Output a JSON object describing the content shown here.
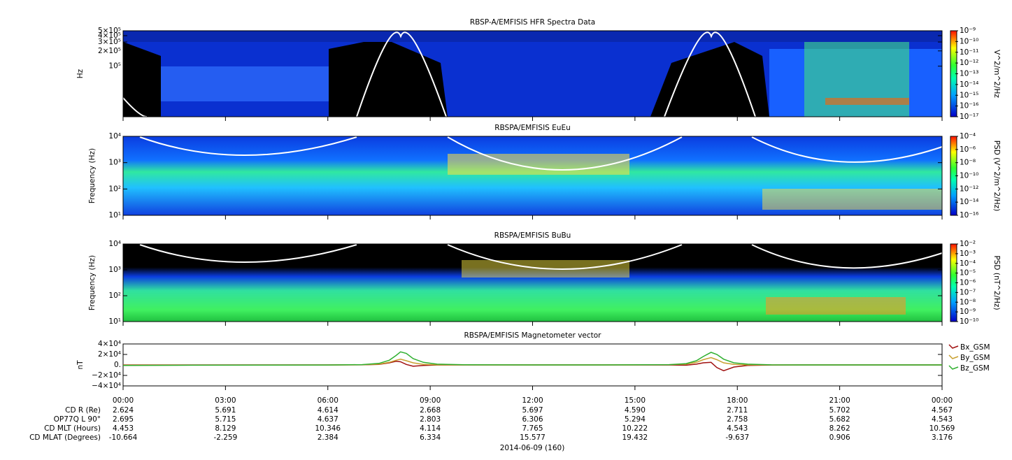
{
  "chart_data": [
    {
      "type": "spectrogram",
      "title": "RBSP-A/EMFISIS  HFR Spectra Data",
      "ylabel": "Hz",
      "yscale": "log",
      "ylim": [
        10000,
        500000
      ],
      "yticks": [
        {
          "value": 500000,
          "label": "5×10⁵"
        },
        {
          "value": 400000,
          "label": "4×10⁵"
        },
        {
          "value": 300000,
          "label": "3×10⁵"
        },
        {
          "value": 200000,
          "label": "2×10⁵"
        },
        {
          "value": 100000,
          "label": "10⁵"
        }
      ],
      "zlabel": "V^2/m^2/Hz",
      "zlim": [
        1e-17,
        1e-09
      ],
      "zticks": [
        {
          "value": 1e-09,
          "label": "10⁻⁹"
        },
        {
          "value": 1e-10,
          "label": "10⁻¹⁰"
        },
        {
          "value": 1e-11,
          "label": "10⁻¹¹"
        },
        {
          "value": 1e-12,
          "label": "10⁻¹²"
        },
        {
          "value": 1e-13,
          "label": "10⁻¹³"
        },
        {
          "value": 1e-14,
          "label": "10⁻¹⁴"
        },
        {
          "value": 1e-15,
          "label": "10⁻¹⁵"
        },
        {
          "value": 1e-16,
          "label": "10⁻¹⁶"
        },
        {
          "value": 1e-17,
          "label": "10⁻¹⁷"
        }
      ]
    },
    {
      "type": "spectrogram",
      "title": "RBSPA/EMFISIS  EuEu",
      "ylabel": "Frequency (Hz)",
      "yscale": "log",
      "ylim": [
        10,
        10000
      ],
      "yticks": [
        {
          "value": 10,
          "label": "10¹"
        },
        {
          "value": 100,
          "label": "10²"
        },
        {
          "value": 1000,
          "label": "10³"
        },
        {
          "value": 10000,
          "label": "10⁴"
        }
      ],
      "zlabel": "PSD (V^2/m^2/Hz)",
      "zlim": [
        1e-16,
        0.0001
      ],
      "zticks": [
        {
          "value": 0.0001,
          "label": "10⁻⁴"
        },
        {
          "value": 1e-06,
          "label": "10⁻⁶"
        },
        {
          "value": 1e-08,
          "label": "10⁻⁸"
        },
        {
          "value": 1e-10,
          "label": "10⁻¹⁰"
        },
        {
          "value": 1e-12,
          "label": "10⁻¹²"
        },
        {
          "value": 1e-14,
          "label": "10⁻¹⁴"
        },
        {
          "value": 1e-16,
          "label": "10⁻¹⁶"
        }
      ]
    },
    {
      "type": "spectrogram",
      "title": "RBSPA/EMFISIS  BuBu",
      "ylabel": "Frequency (Hz)",
      "yscale": "log",
      "ylim": [
        10,
        10000
      ],
      "yticks": [
        {
          "value": 10,
          "label": "10¹"
        },
        {
          "value": 100,
          "label": "10²"
        },
        {
          "value": 1000,
          "label": "10³"
        },
        {
          "value": 10000,
          "label": "10⁴"
        }
      ],
      "zlabel": "PSD (nT^2/Hz)",
      "zlim": [
        1e-10,
        0.01
      ],
      "zticks": [
        {
          "value": 0.01,
          "label": "10⁻²"
        },
        {
          "value": 0.001,
          "label": "10⁻³"
        },
        {
          "value": 0.0001,
          "label": "10⁻⁴"
        },
        {
          "value": 1e-05,
          "label": "10⁻⁵"
        },
        {
          "value": 1e-06,
          "label": "10⁻⁶"
        },
        {
          "value": 1e-07,
          "label": "10⁻⁷"
        },
        {
          "value": 1e-08,
          "label": "10⁻⁸"
        },
        {
          "value": 1e-09,
          "label": "10⁻⁹"
        },
        {
          "value": 1e-10,
          "label": "10⁻¹⁰"
        }
      ]
    },
    {
      "type": "line",
      "title": "RBSPA/EMFISIS  Magnetometer vector",
      "ylabel": "nT",
      "xlim": [
        0,
        24
      ],
      "xticks": [
        {
          "value": 0,
          "label": "00:00"
        },
        {
          "value": 3,
          "label": "03:00"
        },
        {
          "value": 6,
          "label": "06:00"
        },
        {
          "value": 9,
          "label": "09:00"
        },
        {
          "value": 12,
          "label": "12:00"
        },
        {
          "value": 15,
          "label": "15:00"
        },
        {
          "value": 18,
          "label": "18:00"
        },
        {
          "value": 21,
          "label": "21:00"
        },
        {
          "value": 24,
          "label": "00:00"
        }
      ],
      "ylim": [
        -40000,
        40000
      ],
      "yticks": [
        {
          "value": 40000,
          "label": "4×10⁴"
        },
        {
          "value": 20000,
          "label": "2×10⁴"
        },
        {
          "value": 0,
          "label": "0."
        },
        {
          "value": -20000,
          "label": "−2×10⁴"
        },
        {
          "value": -40000,
          "label": "−4×10⁴"
        }
      ],
      "x": [
        0,
        2,
        4,
        6,
        7,
        7.5,
        7.8,
        8.0,
        8.13,
        8.3,
        8.5,
        8.8,
        9.2,
        10,
        12,
        14,
        16,
        16.5,
        16.8,
        17.0,
        17.23,
        17.4,
        17.6,
        17.9,
        18.3,
        19,
        21,
        24
      ],
      "series": [
        {
          "name": "Bx_GSM",
          "color": "#a01010",
          "values": [
            0,
            0,
            0,
            0,
            200,
            1000,
            4000,
            7000,
            6000,
            1000,
            -2500,
            -1000,
            -200,
            0,
            0,
            0,
            -200,
            -500,
            1500,
            4000,
            5000,
            -5000,
            -11000,
            -4000,
            -1000,
            -200,
            0,
            0
          ]
        },
        {
          "name": "By_GSM",
          "color": "#c8a030",
          "values": [
            -500,
            -300,
            -200,
            -100,
            300,
            1500,
            5000,
            9000,
            11000,
            8000,
            4000,
            1000,
            200,
            0,
            0,
            0,
            300,
            1500,
            5000,
            10000,
            14000,
            10000,
            4000,
            1000,
            200,
            0,
            0,
            0
          ]
        },
        {
          "name": "Bz_GSM",
          "color": "#30b030",
          "values": [
            -1000,
            -500,
            -300,
            -200,
            500,
            3000,
            9000,
            18000,
            25000,
            22000,
            12000,
            5000,
            1500,
            300,
            0,
            0,
            500,
            2500,
            8000,
            16000,
            24000,
            20000,
            11000,
            4000,
            1500,
            200,
            0,
            0
          ]
        }
      ]
    }
  ],
  "ephemeris": {
    "rows": [
      {
        "label": "CD R (Re)",
        "values": [
          "2.624",
          "5.691",
          "4.614",
          "2.668",
          "5.697",
          "4.590",
          "2.711",
          "5.702",
          "4.567"
        ]
      },
      {
        "label": "OP77Q L 90°",
        "values": [
          "2.695",
          "5.715",
          "4.637",
          "2.803",
          "6.306",
          "5.294",
          "2.758",
          "5.682",
          "4.543"
        ]
      },
      {
        "label": "CD MLT (Hours)",
        "values": [
          "4.453",
          "8.129",
          "10.346",
          "4.114",
          "7.765",
          "10.222",
          "4.543",
          "8.262",
          "10.569"
        ]
      },
      {
        "label": "CD MLAT (Degrees)",
        "values": [
          "-10.664",
          "-2.259",
          "2.384",
          "6.334",
          "15.577",
          "19.432",
          "-9.637",
          "0.906",
          "3.176"
        ]
      }
    ],
    "date": "2014-06-09 (160)"
  }
}
